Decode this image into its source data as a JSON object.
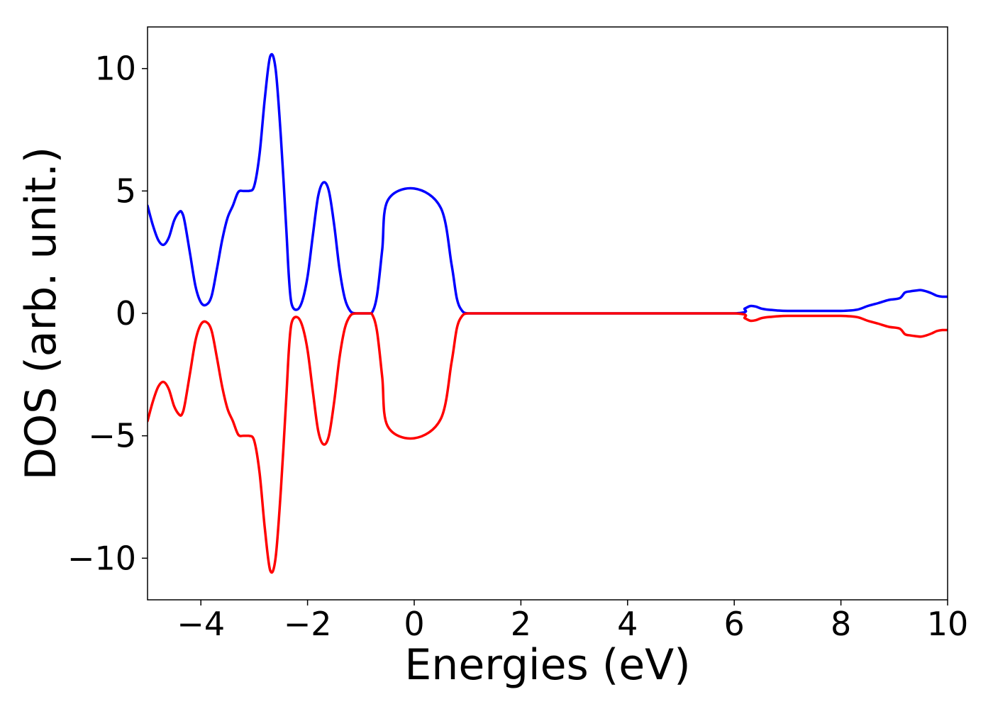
{
  "chart_data": {
    "type": "line",
    "title": "",
    "xlabel": "Energies (eV)",
    "ylabel": "DOS (arb. unit.)",
    "xlim": [
      -5,
      10
    ],
    "ylim": [
      -11.7,
      11.7
    ],
    "xticks": [
      -4,
      -2,
      0,
      2,
      4,
      6,
      8,
      10
    ],
    "xtick_labels": [
      "−4",
      "−2",
      "0",
      "2",
      "4",
      "6",
      "8",
      "10"
    ],
    "yticks": [
      10,
      5,
      0,
      -5,
      -10
    ],
    "ytick_labels": [
      "10",
      "5",
      "0",
      "−5",
      "−10"
    ],
    "grid": false,
    "legend": "none",
    "series": [
      {
        "color": "#0000ff",
        "x": [
          -5.0,
          -4.9,
          -4.8,
          -4.7,
          -4.6,
          -4.5,
          -4.4,
          -4.35,
          -4.3,
          -4.2,
          -4.1,
          -4.0,
          -3.9,
          -3.8,
          -3.7,
          -3.6,
          -3.5,
          -3.4,
          -3.3,
          -3.2,
          -3.1,
          -3.0,
          -2.9,
          -2.8,
          -2.7,
          -2.6,
          -2.5,
          -2.4,
          -2.35,
          -2.3,
          -2.2,
          -2.1,
          -2.0,
          -1.9,
          -1.8,
          -1.7,
          -1.6,
          -1.5,
          -1.4,
          -1.3,
          -1.2,
          -1.1,
          -1.0,
          -0.9,
          -0.8,
          -0.7,
          -0.6,
          -0.5,
          0.0,
          0.5,
          0.7,
          0.8,
          0.9,
          1.0,
          1.1,
          1.15,
          1.2,
          1.3,
          1.4,
          1.5,
          1.6,
          1.7,
          2.0,
          4.0,
          6.0,
          6.2,
          6.3,
          6.4,
          6.5,
          6.6,
          6.7,
          6.8,
          7.0,
          7.5,
          8.0,
          8.3,
          8.5,
          8.7,
          8.9,
          9.1,
          9.2,
          9.3,
          9.4,
          9.5,
          9.6,
          9.7,
          9.8,
          9.9,
          10.0
        ],
        "values": [
          4.4,
          3.6,
          3.0,
          2.8,
          3.1,
          3.8,
          4.15,
          4.1,
          3.7,
          2.4,
          1.1,
          0.45,
          0.35,
          0.7,
          1.8,
          3.0,
          3.9,
          4.4,
          4.95,
          5.0,
          5.0,
          5.2,
          6.5,
          8.8,
          10.5,
          10.0,
          7.2,
          3.5,
          1.5,
          0.4,
          0.15,
          0.5,
          1.5,
          3.2,
          4.8,
          5.35,
          5.0,
          3.6,
          1.8,
          0.6,
          0.1,
          0.0,
          0.0,
          0.0,
          0.0,
          0.7,
          2.6,
          4.6,
          5.1,
          4.3,
          2.0,
          0.6,
          0.1,
          0.0,
          0.0,
          0.0,
          0.0,
          0.0,
          0.0,
          0.0,
          0.0,
          0.0,
          0.0,
          0.0,
          0.0,
          0.2,
          0.3,
          0.28,
          0.2,
          0.16,
          0.14,
          0.12,
          0.1,
          0.1,
          0.1,
          0.15,
          0.3,
          0.42,
          0.55,
          0.62,
          0.85,
          0.9,
          0.93,
          0.95,
          0.9,
          0.82,
          0.72,
          0.68,
          0.68
        ]
      },
      {
        "color": "#ff0000",
        "x": [
          -5.0,
          -4.9,
          -4.8,
          -4.7,
          -4.6,
          -4.5,
          -4.4,
          -4.35,
          -4.3,
          -4.2,
          -4.1,
          -4.0,
          -3.9,
          -3.8,
          -3.7,
          -3.6,
          -3.5,
          -3.4,
          -3.3,
          -3.2,
          -3.1,
          -3.0,
          -2.9,
          -2.8,
          -2.7,
          -2.6,
          -2.5,
          -2.4,
          -2.35,
          -2.3,
          -2.2,
          -2.1,
          -2.0,
          -1.9,
          -1.8,
          -1.7,
          -1.6,
          -1.5,
          -1.4,
          -1.3,
          -1.2,
          -1.1,
          -1.0,
          -0.9,
          -0.8,
          -0.7,
          -0.6,
          -0.5,
          0.0,
          0.5,
          0.7,
          0.8,
          0.9,
          1.0,
          1.1,
          1.15,
          1.2,
          1.3,
          1.4,
          1.5,
          1.6,
          1.7,
          2.0,
          4.0,
          6.0,
          6.2,
          6.3,
          6.4,
          6.5,
          6.6,
          6.7,
          6.8,
          7.0,
          7.5,
          8.0,
          8.3,
          8.5,
          8.7,
          8.9,
          9.1,
          9.2,
          9.3,
          9.4,
          9.5,
          9.6,
          9.7,
          9.8,
          9.9,
          10.0
        ],
        "values": [
          -4.4,
          -3.6,
          -3.0,
          -2.8,
          -3.1,
          -3.8,
          -4.15,
          -4.1,
          -3.7,
          -2.4,
          -1.1,
          -0.45,
          -0.35,
          -0.7,
          -1.8,
          -3.0,
          -3.9,
          -4.4,
          -4.95,
          -5.0,
          -5.0,
          -5.2,
          -6.5,
          -8.8,
          -10.5,
          -10.0,
          -7.2,
          -3.5,
          -1.5,
          -0.4,
          -0.15,
          -0.5,
          -1.5,
          -3.2,
          -4.8,
          -5.35,
          -5.0,
          -3.6,
          -1.8,
          -0.6,
          -0.1,
          0.0,
          0.0,
          0.0,
          0.0,
          -0.7,
          -2.6,
          -4.6,
          -5.1,
          -4.3,
          -2.0,
          -0.6,
          -0.1,
          0.0,
          0.0,
          0.0,
          0.0,
          0.0,
          0.0,
          0.0,
          0.0,
          0.0,
          0.0,
          0.0,
          0.0,
          -0.2,
          -0.3,
          -0.28,
          -0.2,
          -0.16,
          -0.14,
          -0.12,
          -0.1,
          -0.1,
          -0.1,
          -0.15,
          -0.3,
          -0.42,
          -0.55,
          -0.62,
          -0.85,
          -0.9,
          -0.93,
          -0.95,
          -0.9,
          -0.82,
          -0.72,
          -0.68,
          -0.68
        ]
      }
    ]
  }
}
